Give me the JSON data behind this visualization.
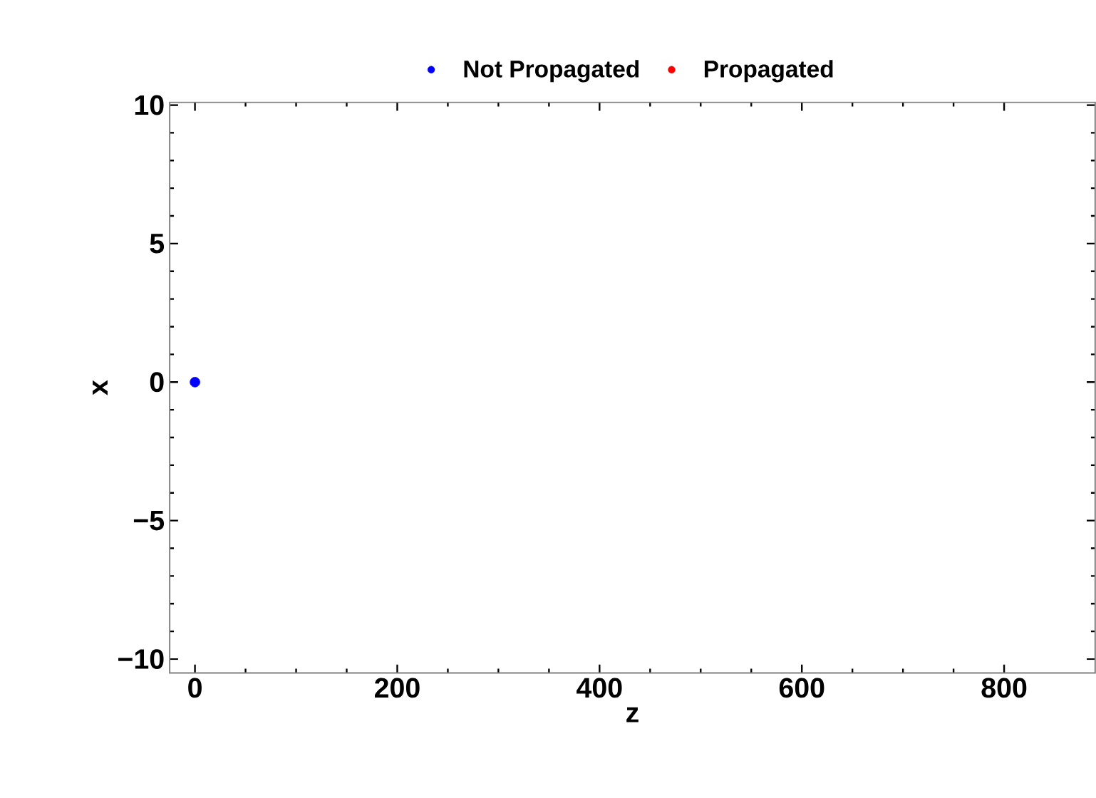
{
  "chart_data": {
    "type": "scatter",
    "xlabel": "z",
    "ylabel": "x",
    "series": [
      {
        "name": "Not Propagated",
        "color": "#0000ff",
        "x": [
          0
        ],
        "values": [
          0
        ]
      },
      {
        "name": "Propagated",
        "color": "#ff0000"
      }
    ],
    "xlim": [
      -25,
      890
    ],
    "ylim": [
      -10.5,
      10.1
    ],
    "xticks": [
      0,
      200,
      400,
      600,
      800
    ],
    "yticks": [
      {
        "value": -10,
        "label": "−10"
      },
      {
        "value": -5,
        "label": "−5"
      },
      0,
      5,
      10
    ],
    "marker": "circle",
    "legend": "top",
    "grid": false
  }
}
